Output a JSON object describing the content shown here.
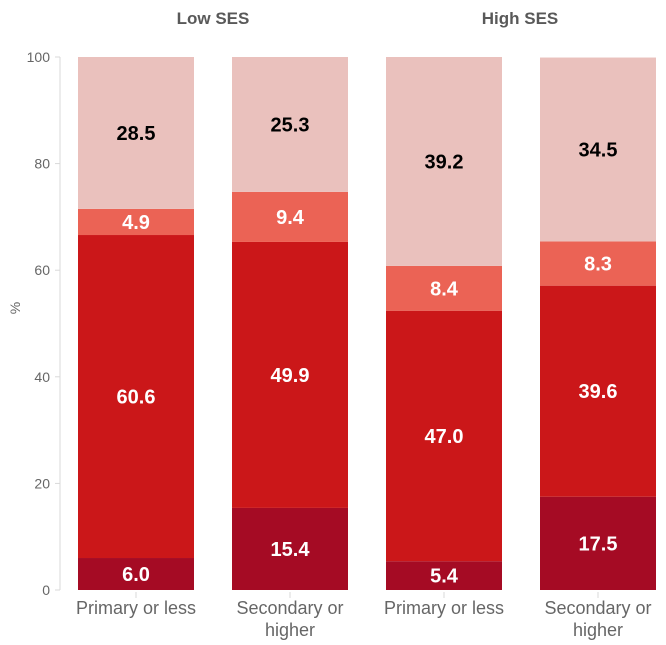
{
  "chart_data": {
    "type": "bar",
    "stacked": true,
    "ylabel": "%",
    "ylim": [
      0,
      100
    ],
    "yticks": [
      0,
      20,
      40,
      60,
      80,
      100
    ],
    "grid": false,
    "groups": [
      {
        "title": "Low SES",
        "categories": [
          "Primary or less",
          "Secondary or higher"
        ]
      },
      {
        "title": "High SES",
        "categories": [
          "Primary or less",
          "Secondary or higher"
        ]
      }
    ],
    "categories": [
      [
        "Primary or less"
      ],
      [
        "Secondary or",
        "higher"
      ],
      [
        "Primary or less"
      ],
      [
        "Secondary or",
        "higher"
      ]
    ],
    "series": [
      {
        "color": "#a50b24",
        "label_color": "#ffffff",
        "values": [
          6.0,
          15.4,
          5.4,
          17.5
        ]
      },
      {
        "color": "#cb1719",
        "label_color": "#ffffff",
        "values": [
          60.6,
          49.9,
          47.0,
          39.6
        ]
      },
      {
        "color": "#eb6355",
        "label_color": "#ffffff",
        "values": [
          4.9,
          9.4,
          8.4,
          8.3
        ]
      },
      {
        "color": "#eac1bd",
        "label_color": "#000000",
        "values": [
          28.5,
          25.3,
          39.2,
          34.5
        ]
      }
    ]
  }
}
